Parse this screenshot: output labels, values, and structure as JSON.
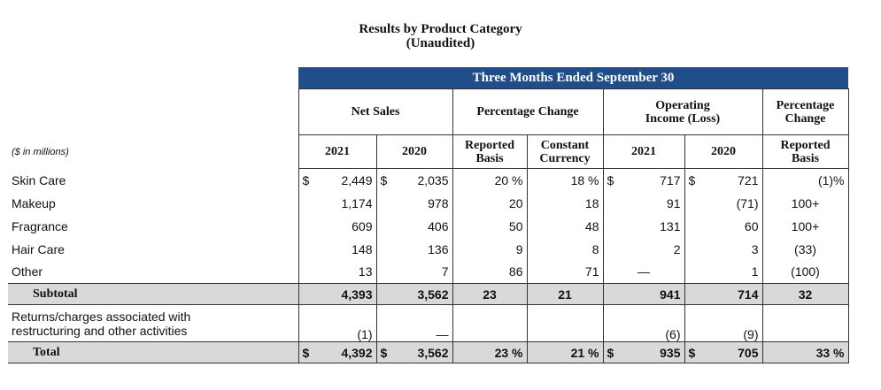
{
  "title_line1": "Results by Product Category",
  "title_line2": "(Unaudited)",
  "band": "Three Months Ended September 30",
  "groups": {
    "net_sales": "Net Sales",
    "pct_change": "Percentage Change",
    "op_income_1": "Operating",
    "op_income_2": "Income (Loss)",
    "pct_change2_1": "Percentage",
    "pct_change2_2": "Change"
  },
  "units_label": "($ in millions)",
  "sub": {
    "y2021": "2021",
    "y2020": "2020",
    "reported_1": "Reported",
    "reported_2": "Basis",
    "constant_1": "Constant",
    "constant_2": "Currency",
    "oy2021": "2021",
    "oy2020": "2020",
    "reported2_1": "Reported",
    "reported2_2": "Basis"
  },
  "currency": "$",
  "rows": [
    {
      "label": "Skin Care",
      "ns21": "2,449",
      "ns20": "2,035",
      "rep": "20 %",
      "cc": "18 %",
      "oi21": "717",
      "oi20": "721",
      "pct": "(1)%"
    },
    {
      "label": "Makeup",
      "ns21": "1,174",
      "ns20": "978",
      "rep": "20",
      "cc": "18",
      "oi21": "91",
      "oi20": "(71)",
      "pct": "100+"
    },
    {
      "label": "Fragrance",
      "ns21": "609",
      "ns20": "406",
      "rep": "50",
      "cc": "48",
      "oi21": "131",
      "oi20": "60",
      "pct": "100+"
    },
    {
      "label": "Hair Care",
      "ns21": "148",
      "ns20": "136",
      "rep": "9",
      "cc": "8",
      "oi21": "2",
      "oi20": "3",
      "pct": "(33)"
    },
    {
      "label": "Other",
      "ns21": "13",
      "ns20": "7",
      "rep": "86",
      "cc": "71",
      "oi21": "—",
      "oi20": "1",
      "pct": "(100)"
    }
  ],
  "subtotal": {
    "label": "Subtotal",
    "ns21": "4,393",
    "ns20": "3,562",
    "rep": "23",
    "cc": "21",
    "oi21": "941",
    "oi20": "714",
    "pct": "32"
  },
  "returns": {
    "label_1": "Returns/charges associated with",
    "label_2": "restructuring and other activities",
    "ns21": "(1)",
    "ns20": "—",
    "oi21": "(6)",
    "oi20": "(9)"
  },
  "total": {
    "label": "Total",
    "ns21": "4,392",
    "ns20": "3,562",
    "rep": "23 %",
    "cc": "21 %",
    "oi21": "935",
    "oi20": "705",
    "pct": "33 %"
  }
}
